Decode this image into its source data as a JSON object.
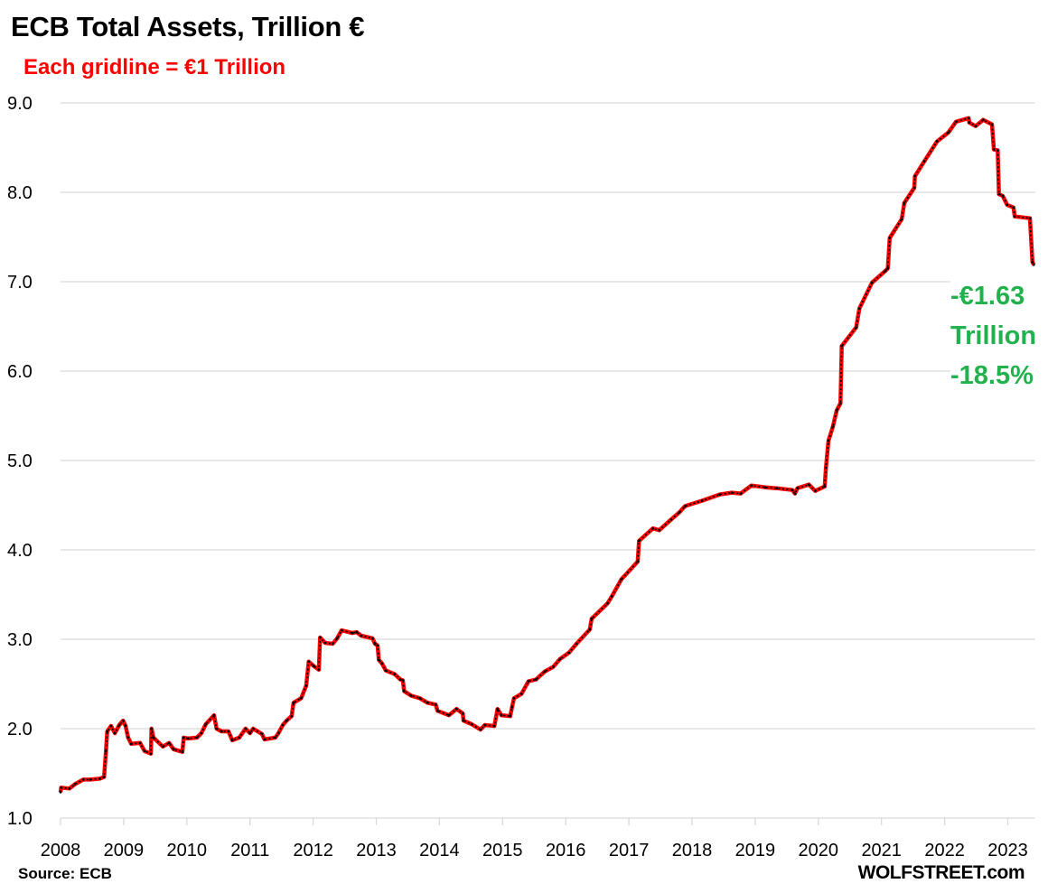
{
  "chart_data": {
    "type": "line",
    "title": "ECB Total Assets, Trillion €",
    "subtitle": "Each gridline = €1 Trillion",
    "xlabel": "",
    "ylabel": "",
    "xlim": [
      2008,
      2023.45
    ],
    "ylim": [
      1.0,
      9.0
    ],
    "grid": true,
    "x_ticks": [
      "2008",
      "2009",
      "2010",
      "2011",
      "2012",
      "2013",
      "2014",
      "2015",
      "2016",
      "2017",
      "2018",
      "2019",
      "2020",
      "2021",
      "2022",
      "2023"
    ],
    "y_ticks": [
      "1.0",
      "2.0",
      "3.0",
      "4.0",
      "5.0",
      "6.0",
      "7.0",
      "8.0",
      "9.0"
    ],
    "line_color": "#ff0000",
    "marker_color": "#000000",
    "series": [
      {
        "x": [
          2008.0,
          2008.01,
          2008.14,
          2008.23,
          2008.36,
          2008.47,
          2008.62,
          2008.69,
          2008.72,
          2008.74,
          2008.8,
          2008.86,
          2008.93,
          2008.99,
          2009.03,
          2009.07,
          2009.12,
          2009.26,
          2009.33,
          2009.43,
          2009.44,
          2009.47,
          2009.62,
          2009.72,
          2009.79,
          2009.93,
          2009.95,
          2010.02,
          2010.16,
          2010.23,
          2010.3,
          2010.43,
          2010.47,
          2010.55,
          2010.66,
          2010.72,
          2010.83,
          2010.93,
          2011.0,
          2011.05,
          2011.19,
          2011.23,
          2011.4,
          2011.45,
          2011.52,
          2011.58,
          2011.66,
          2011.69,
          2011.81,
          2011.89,
          2011.93,
          2012.01,
          2012.09,
          2012.11,
          2012.19,
          2012.31,
          2012.38,
          2012.45,
          2012.62,
          2012.69,
          2012.76,
          2012.94,
          2012.98,
          2013.02,
          2013.04,
          2013.09,
          2013.15,
          2013.29,
          2013.38,
          2013.42,
          2013.44,
          2013.55,
          2013.69,
          2013.81,
          2013.94,
          2013.97,
          2014.15,
          2014.27,
          2014.37,
          2014.38,
          2014.51,
          2014.65,
          2014.72,
          2014.87,
          2014.92,
          2014.98,
          2015.12,
          2015.15,
          2015.18,
          2015.3,
          2015.41,
          2015.53,
          2015.67,
          2015.8,
          2015.91,
          2016.05,
          2016.17,
          2016.38,
          2016.41,
          2016.66,
          2016.73,
          2016.88,
          2017.14,
          2017.16,
          2017.38,
          2017.48,
          2017.67,
          2017.8,
          2017.89,
          2018.16,
          2018.44,
          2018.63,
          2018.77,
          2018.94,
          2019.16,
          2019.34,
          2019.59,
          2019.63,
          2019.67,
          2019.85,
          2019.95,
          2020.1,
          2020.12,
          2020.16,
          2020.23,
          2020.29,
          2020.35,
          2020.37,
          2020.6,
          2020.65,
          2020.85,
          2021.06,
          2021.1,
          2021.13,
          2021.32,
          2021.36,
          2021.52,
          2021.53,
          2021.68,
          2021.88,
          2022.06,
          2022.18,
          2022.38,
          2022.39,
          2022.49,
          2022.61,
          2022.75,
          2022.78,
          2022.84,
          2022.86,
          2022.92,
          2022.99,
          2023.09,
          2023.11,
          2023.35,
          2023.39,
          2023.41
        ],
        "y": [
          1.29,
          1.34,
          1.33,
          1.38,
          1.43,
          1.43,
          1.44,
          1.46,
          1.75,
          1.97,
          2.03,
          1.95,
          2.04,
          2.09,
          2.03,
          1.9,
          1.83,
          1.84,
          1.75,
          1.72,
          2.0,
          1.9,
          1.8,
          1.84,
          1.77,
          1.74,
          1.9,
          1.89,
          1.9,
          1.95,
          2.05,
          2.15,
          2.0,
          1.97,
          1.97,
          1.87,
          1.9,
          2.0,
          1.95,
          2.0,
          1.94,
          1.88,
          1.9,
          1.95,
          2.04,
          2.09,
          2.14,
          2.29,
          2.34,
          2.48,
          2.75,
          2.7,
          2.66,
          3.02,
          2.96,
          2.95,
          3.01,
          3.1,
          3.07,
          3.08,
          3.04,
          3.01,
          2.95,
          2.93,
          2.77,
          2.73,
          2.65,
          2.61,
          2.55,
          2.54,
          2.42,
          2.37,
          2.34,
          2.29,
          2.27,
          2.2,
          2.15,
          2.22,
          2.17,
          2.09,
          2.05,
          1.99,
          2.04,
          2.03,
          2.22,
          2.15,
          2.14,
          2.24,
          2.34,
          2.39,
          2.53,
          2.55,
          2.64,
          2.69,
          2.78,
          2.85,
          2.95,
          3.11,
          3.23,
          3.4,
          3.48,
          3.67,
          3.87,
          4.1,
          4.24,
          4.22,
          4.34,
          4.42,
          4.49,
          4.55,
          4.62,
          4.64,
          4.63,
          4.72,
          4.7,
          4.69,
          4.67,
          4.63,
          4.69,
          4.73,
          4.66,
          4.71,
          4.92,
          5.22,
          5.38,
          5.56,
          5.64,
          6.28,
          6.49,
          6.7,
          6.99,
          7.12,
          7.15,
          7.49,
          7.7,
          7.88,
          8.05,
          8.18,
          8.35,
          8.57,
          8.67,
          8.79,
          8.83,
          8.78,
          8.74,
          8.81,
          8.76,
          8.48,
          8.47,
          7.98,
          7.96,
          7.86,
          7.83,
          7.73,
          7.71,
          7.22,
          7.19
        ]
      }
    ],
    "annotation": {
      "lines": [
        "-€1.63",
        "Trillion",
        "-18.5%"
      ],
      "color": "#22b14c"
    },
    "source": "Source: ECB",
    "brand": "WOLFSTREET.com"
  }
}
